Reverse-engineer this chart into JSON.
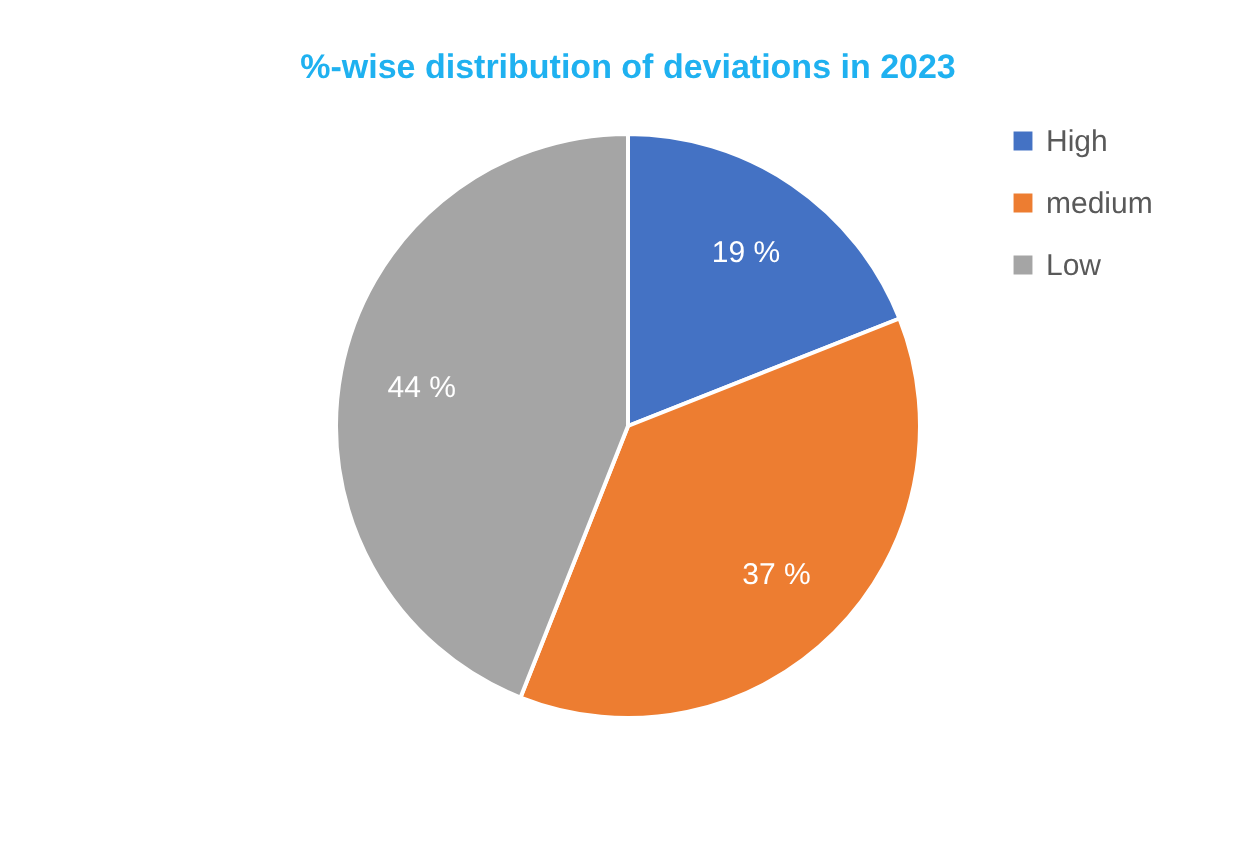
{
  "chart_data": {
    "type": "pie",
    "title": "%-wise distribution of deviations in 2023",
    "categories": [
      "High",
      "medium",
      "Low"
    ],
    "values": [
      19,
      37,
      44
    ],
    "colors": [
      "#4472c4",
      "#ed7d31",
      "#a5a5a5"
    ],
    "value_labels": [
      "19 %",
      "37 %",
      "44 %"
    ],
    "legend": "right"
  }
}
